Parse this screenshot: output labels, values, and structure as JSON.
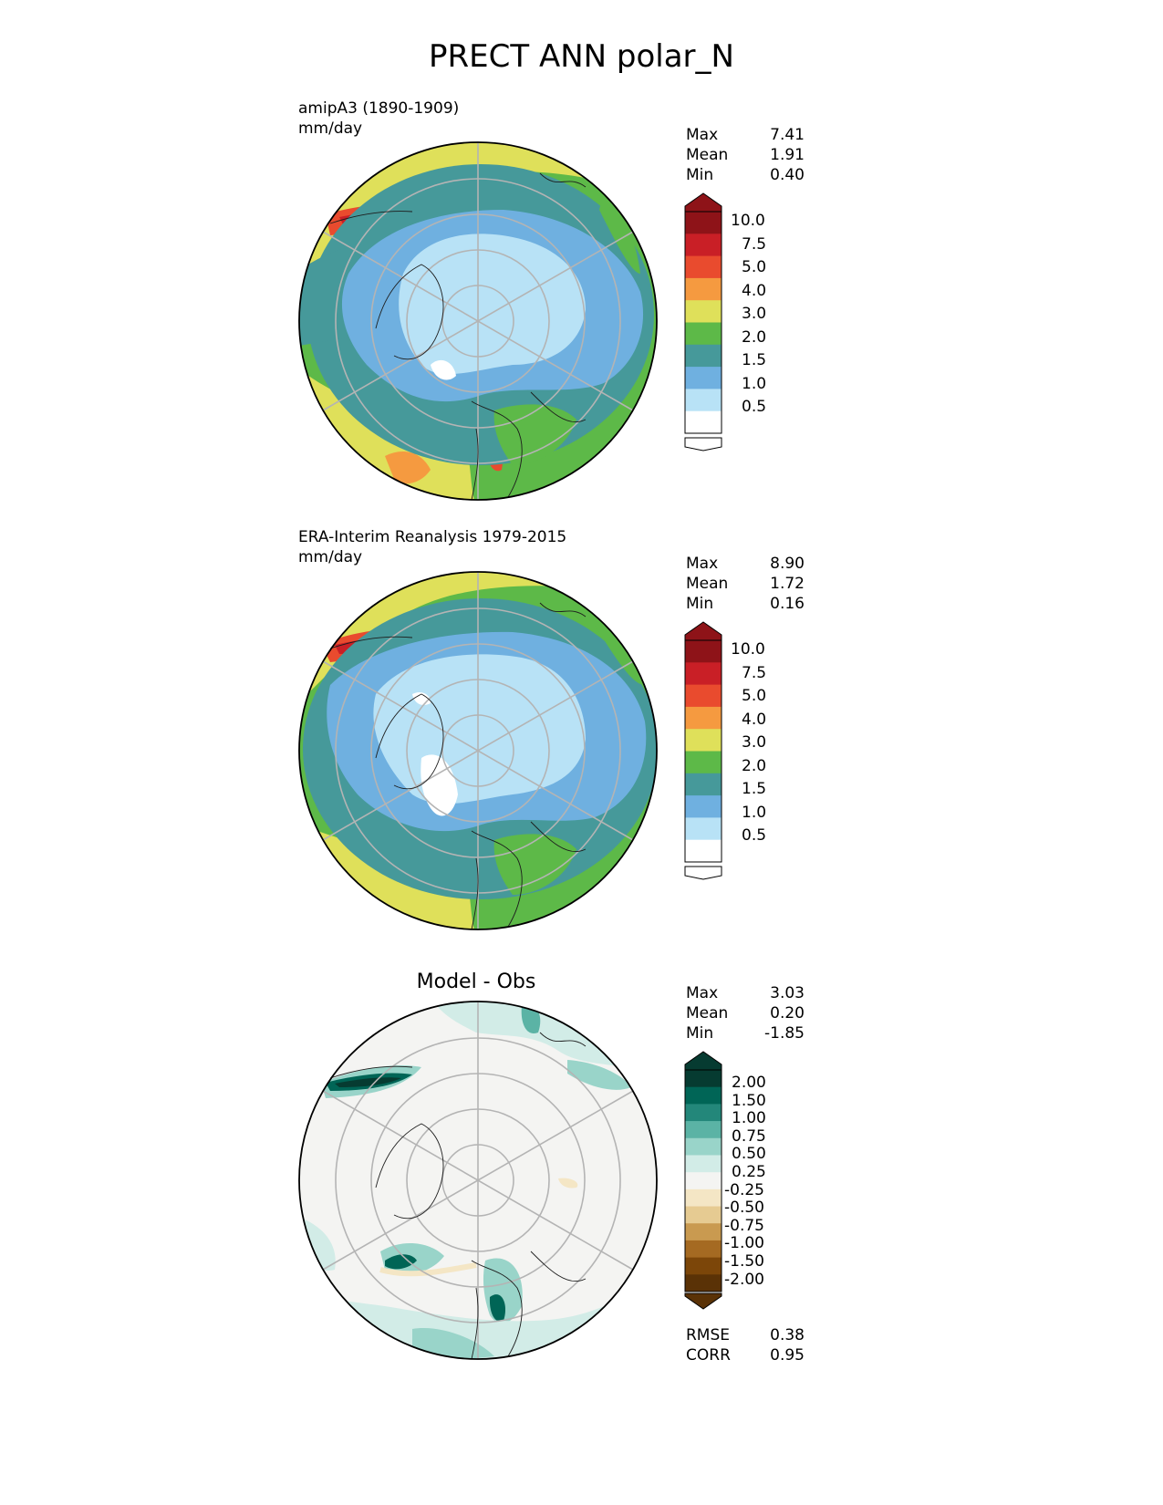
{
  "figure_title": "PRECT ANN polar_N",
  "panels": [
    {
      "id": "test",
      "title": "amipA3 (1890-1909)",
      "units": "mm/day",
      "stats": [
        {
          "label": "Max",
          "value": "7.41"
        },
        {
          "label": "Mean",
          "value": "1.91"
        },
        {
          "label": "Min",
          "value": "0.40"
        }
      ]
    },
    {
      "id": "ref",
      "title": "ERA-Interim Reanalysis 1979-2015",
      "units": "mm/day",
      "stats": [
        {
          "label": "Max",
          "value": "8.90"
        },
        {
          "label": "Mean",
          "value": "1.72"
        },
        {
          "label": "Min",
          "value": "0.16"
        }
      ]
    },
    {
      "id": "diff",
      "title": "Model - Obs",
      "stats": [
        {
          "label": "Max",
          "value": "3.03"
        },
        {
          "label": "Mean",
          "value": "0.20"
        },
        {
          "label": "Min",
          "value": "-1.85"
        }
      ],
      "extra_stats": [
        {
          "label": "RMSE",
          "value": "0.38"
        },
        {
          "label": "CORR",
          "value": "0.95"
        }
      ]
    }
  ],
  "colorbars": {
    "precip": {
      "ticks": [
        "10.0",
        "7.5",
        "5.0",
        "4.0",
        "3.0",
        "2.0",
        "1.5",
        "1.0",
        "0.5"
      ],
      "colors_top_to_bottom": [
        "#8e1318",
        "#c91f26",
        "#e94b2e",
        "#f59a40",
        "#dfe05a",
        "#5db948",
        "#46999a",
        "#6fb0e0",
        "#b8e2f6",
        "#ffffff"
      ],
      "overflow_top_color": "#8e1318",
      "underflow_bottom_color": "#ffffff"
    },
    "diff": {
      "ticks": [
        "2.00",
        "1.50",
        "1.00",
        "0.75",
        "0.50",
        "0.25",
        "-0.25",
        "-0.50",
        "-0.75",
        "-1.00",
        "-1.50",
        "-2.00"
      ],
      "colors_top_to_bottom": [
        "#063b31",
        "#006556",
        "#23877a",
        "#5bb3a5",
        "#99d4c9",
        "#d2ece7",
        "#f4f4f2",
        "#f4e6c5",
        "#e6cb92",
        "#c99a50",
        "#a56a22",
        "#7c4609",
        "#5a3206"
      ],
      "overflow_top_color": "#063b31",
      "underflow_bottom_color": "#5a3206"
    }
  }
}
